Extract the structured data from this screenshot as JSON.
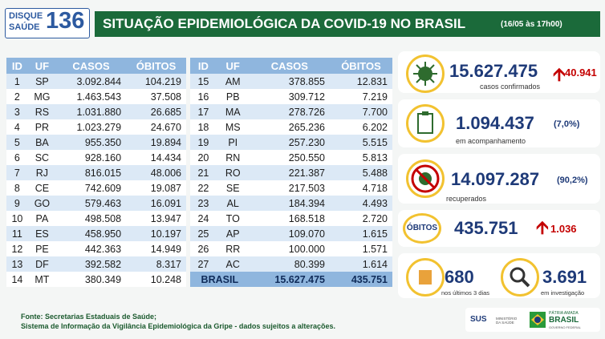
{
  "header": {
    "logo": {
      "line1": "DISQUE",
      "line2": "SAÚDE",
      "number": "136"
    },
    "title": "SITUAÇÃO EPIDEMIOLÓGICA DA COVID-19 NO BRASIL",
    "date": "(16/05 às 17h00)"
  },
  "table": {
    "columns": [
      "ID",
      "UF",
      "CASOS",
      "ÓBITOS"
    ],
    "left": [
      [
        "1",
        "SP",
        "3.092.844",
        "104.219"
      ],
      [
        "2",
        "MG",
        "1.463.543",
        "37.508"
      ],
      [
        "3",
        "RS",
        "1.031.880",
        "26.685"
      ],
      [
        "4",
        "PR",
        "1.023.279",
        "24.670"
      ],
      [
        "5",
        "BA",
        "955.350",
        "19.894"
      ],
      [
        "6",
        "SC",
        "928.160",
        "14.434"
      ],
      [
        "7",
        "RJ",
        "816.015",
        "48.006"
      ],
      [
        "8",
        "CE",
        "742.609",
        "19.087"
      ],
      [
        "9",
        "GO",
        "579.463",
        "16.091"
      ],
      [
        "10",
        "PA",
        "498.508",
        "13.947"
      ],
      [
        "11",
        "ES",
        "458.950",
        "10.197"
      ],
      [
        "12",
        "PE",
        "442.363",
        "14.949"
      ],
      [
        "13",
        "DF",
        "392.582",
        "8.317"
      ],
      [
        "14",
        "MT",
        "380.349",
        "10.248"
      ]
    ],
    "right": [
      [
        "15",
        "AM",
        "378.855",
        "12.831"
      ],
      [
        "16",
        "PB",
        "309.712",
        "7.219"
      ],
      [
        "17",
        "MA",
        "278.726",
        "7.700"
      ],
      [
        "18",
        "MS",
        "265.236",
        "6.202"
      ],
      [
        "19",
        "PI",
        "257.230",
        "5.515"
      ],
      [
        "20",
        "RN",
        "250.550",
        "5.813"
      ],
      [
        "21",
        "RO",
        "221.387",
        "5.488"
      ],
      [
        "22",
        "SE",
        "217.503",
        "4.718"
      ],
      [
        "23",
        "AL",
        "184.394",
        "4.493"
      ],
      [
        "24",
        "TO",
        "168.518",
        "2.720"
      ],
      [
        "25",
        "AP",
        "109.070",
        "1.615"
      ],
      [
        "26",
        "RR",
        "100.000",
        "1.571"
      ],
      [
        "27",
        "AC",
        "80.399",
        "1.614"
      ]
    ],
    "total": [
      "BRASIL",
      "15.627.475",
      "435.751"
    ]
  },
  "stats": {
    "confirmed": {
      "value": "15.627.475",
      "increase": "40.941",
      "label": "casos confirmados"
    },
    "monitoring": {
      "value": "1.094.437",
      "percent": "(7,0%)",
      "label": "em acompanhamento"
    },
    "recovered": {
      "value": "14.097.287",
      "percent": "(90,2%)",
      "label": "recuperados"
    },
    "deaths": {
      "label": "ÓBITOS",
      "value": "435.751",
      "increase": "1.036"
    },
    "recent": {
      "value": "680",
      "label": "nos últimos 3 dias"
    },
    "investigation": {
      "value": "3.691",
      "label": "em investigação"
    }
  },
  "footer": {
    "line1": "Fonte: Secretarias Estaduais de Saúde;",
    "line2": "Sistema de Informação da Vigilância Epidemiológica da Gripe - dados sujeitos a alterações.",
    "sus": "SUS",
    "ministry": "MINISTÉRIO DA SAÚDE",
    "brand1": "PÁTRIA AMADA",
    "brand2": "BRASIL",
    "brand3": "GOVERNO FEDERAL"
  }
}
